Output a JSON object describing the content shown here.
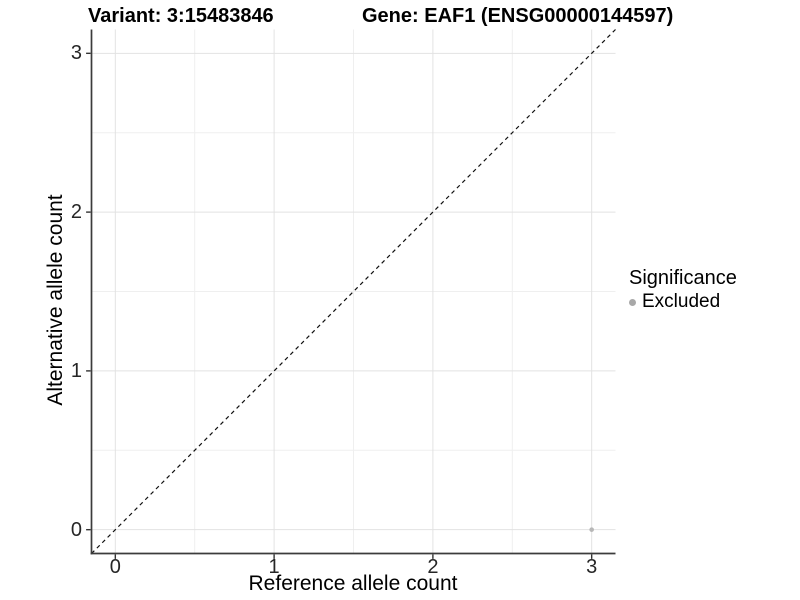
{
  "figure": {
    "title_left": "Variant: 3:15483846",
    "title_right": "Gene: EAF1 (ENSG00000144597)"
  },
  "chart_data": {
    "type": "scatter",
    "title": "Variant: 3:15483846    Gene: EAF1 (ENSG00000144597)",
    "xlabel": "Reference allele count",
    "ylabel": "Alternative allele count",
    "xlim": [
      -0.15,
      3.15
    ],
    "ylim": [
      -0.15,
      3.15
    ],
    "x_ticks": [
      0,
      1,
      2,
      3
    ],
    "y_ticks": [
      0,
      1,
      2,
      3
    ],
    "x_minor_ticks": [
      0.5,
      1.5,
      2.5
    ],
    "y_minor_ticks": [
      0.5,
      1.5,
      2.5
    ],
    "grid": true,
    "legend_position": "right",
    "series": [
      {
        "name": "Excluded",
        "color": "#b7b7b7",
        "points": [
          {
            "x": 3,
            "y": 0
          }
        ]
      }
    ],
    "reference_line": {
      "kind": "identity",
      "equation": "y = x",
      "style": "dashed",
      "color": "#111111"
    },
    "legend": {
      "title": "Significance",
      "items": [
        {
          "label": "Excluded",
          "color": "#a8a8a8"
        }
      ]
    },
    "colors": {
      "background": "#ffffff",
      "grid_major": "#e2e2e2",
      "grid_minor": "#efefef",
      "axis_line": "#3c3c3c",
      "tick_mark": "#333333",
      "tick_text": "#262626"
    }
  }
}
